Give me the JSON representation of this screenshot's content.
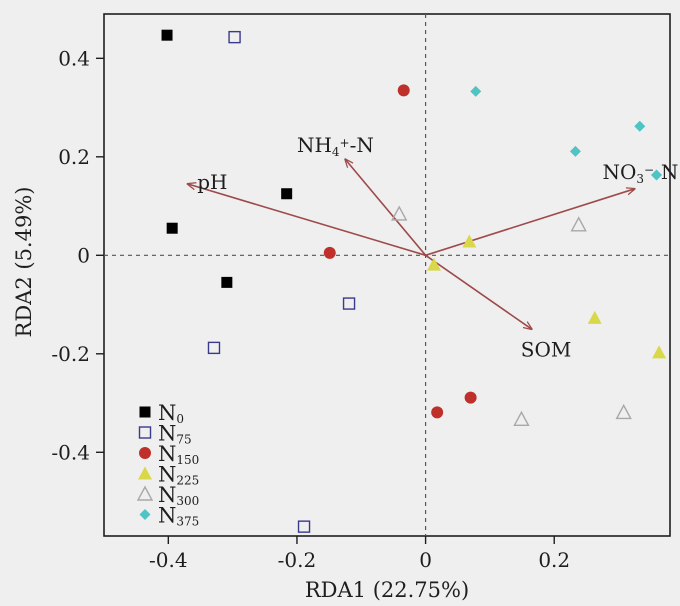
{
  "chart_data": {
    "type": "scatter",
    "title": "",
    "xlabel": "RDA1 (22.75%)",
    "ylabel": "RDA2 (5.49%)",
    "xlim": [
      -0.5,
      0.38
    ],
    "ylim": [
      -0.57,
      0.49
    ],
    "xticks": [
      -0.4,
      -0.2,
      0,
      0.2
    ],
    "xtick_labels": [
      "-0.4",
      "-0.2",
      "0",
      "0.2"
    ],
    "yticks": [
      -0.4,
      -0.2,
      0,
      0.2,
      0.4
    ],
    "ytick_labels": [
      "-0.4",
      "-0.2",
      "0",
      "0.2",
      "0.4"
    ],
    "grid": false,
    "zero_lines": true,
    "legend_position": "bottom-left",
    "series": [
      {
        "name": "N0",
        "label_base": "N",
        "label_sub": "0",
        "marker": "square-filled",
        "color": "#000000",
        "points": [
          [
            -0.402,
            0.447
          ],
          [
            -0.394,
            0.055
          ],
          [
            -0.216,
            0.125
          ],
          [
            -0.309,
            -0.055
          ]
        ]
      },
      {
        "name": "N75",
        "label_base": "N",
        "label_sub": "75",
        "marker": "square-open",
        "color": "#3a3a8c",
        "points": [
          [
            -0.297,
            0.443
          ],
          [
            -0.329,
            -0.188
          ],
          [
            -0.119,
            -0.098
          ],
          [
            -0.189,
            -0.551
          ]
        ]
      },
      {
        "name": "N150",
        "label_base": "N",
        "label_sub": "150",
        "marker": "circle-filled",
        "color": "#c0302a",
        "points": [
          [
            -0.034,
            0.335
          ],
          [
            -0.149,
            0.005
          ],
          [
            0.018,
            -0.319
          ],
          [
            0.07,
            -0.289
          ]
        ]
      },
      {
        "name": "N225",
        "label_base": "N",
        "label_sub": "225",
        "marker": "triangle-filled",
        "color": "#d8d84a",
        "points": [
          [
            0.068,
            0.028
          ],
          [
            0.013,
            -0.019
          ],
          [
            0.263,
            -0.127
          ],
          [
            0.363,
            -0.197
          ]
        ]
      },
      {
        "name": "N300",
        "label_base": "N",
        "label_sub": "300",
        "marker": "triangle-open",
        "color": "#a8a8a8",
        "points": [
          [
            -0.041,
            0.084
          ],
          [
            0.238,
            0.062
          ],
          [
            0.149,
            -0.333
          ],
          [
            0.308,
            -0.319
          ]
        ]
      },
      {
        "name": "N375",
        "label_base": "N",
        "label_sub": "375",
        "marker": "diamond-filled",
        "color": "#4ec4c4",
        "points": [
          [
            0.078,
            0.333
          ],
          [
            0.233,
            0.211
          ],
          [
            0.333,
            0.262
          ],
          [
            0.359,
            0.163
          ]
        ]
      }
    ],
    "arrows": [
      {
        "name": "pH",
        "label": "pH",
        "end": [
          -0.37,
          0.145
        ],
        "label_at": [
          -0.355,
          0.135
        ]
      },
      {
        "name": "NH4-N",
        "label_parts": [
          {
            "t": "NH",
            "s": "normal"
          },
          {
            "t": "4",
            "s": "sub"
          },
          {
            "t": "+",
            "s": "sup"
          },
          {
            "t": "-N",
            "s": "normal"
          }
        ],
        "end": [
          -0.125,
          0.195
        ],
        "label_at": [
          -0.2,
          0.21
        ]
      },
      {
        "name": "NO3-N",
        "label_parts": [
          {
            "t": "NO",
            "s": "normal"
          },
          {
            "t": "3",
            "s": "sub"
          },
          {
            "t": "−",
            "s": "sup"
          },
          {
            "t": "-N",
            "s": "normal"
          }
        ],
        "end": [
          0.325,
          0.135
        ],
        "label_at": [
          0.275,
          0.155
        ]
      },
      {
        "name": "SOM",
        "label": "SOM",
        "end": [
          0.165,
          -0.15
        ],
        "label_at": [
          0.148,
          -0.205
        ]
      }
    ],
    "arrow_color": "#9e4a4a"
  }
}
